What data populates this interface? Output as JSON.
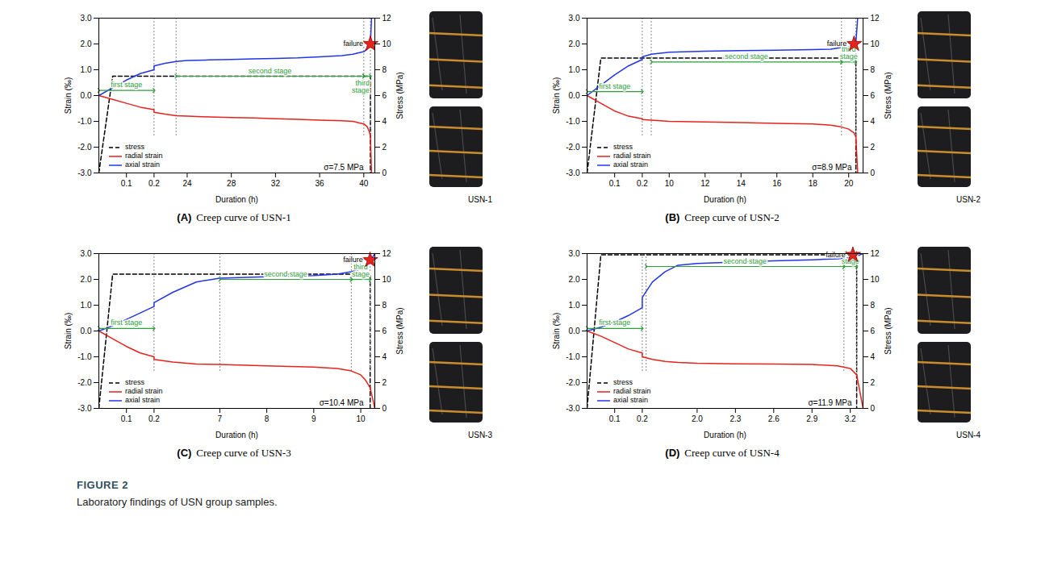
{
  "figure": {
    "label": "FIGURE 2",
    "caption": "Laboratory findings of USN group samples."
  },
  "chart_data": [
    {
      "type": "line",
      "panel": "(A)",
      "title": "Creep curve of USN-1",
      "sample": "USN-1",
      "xlabel": "Duration (h)",
      "ylabel": "Strain (‰)",
      "y2label": "Stress (MPa)",
      "xlim": [
        0,
        41
      ],
      "xbreak": [
        0.2,
        21
      ],
      "xticks": [
        0.1,
        0.2,
        24,
        28,
        32,
        36,
        40
      ],
      "ylim": [
        -3,
        3
      ],
      "yticks": [
        {
          "value": -3,
          "label": "-3.0"
        },
        {
          "value": -2,
          "label": "-2.0"
        },
        {
          "value": -1,
          "label": "-1.0"
        },
        {
          "value": 0,
          "label": "0.0"
        },
        {
          "value": 1,
          "label": "1.0"
        },
        {
          "value": 2,
          "label": "2.0"
        },
        {
          "value": 3,
          "label": "3.0"
        }
      ],
      "y2lim": [
        0,
        12
      ],
      "y2ticks": [
        0,
        2,
        4,
        6,
        8,
        10,
        12
      ],
      "legend": "bottom-left",
      "series": [
        {
          "name": "stress",
          "color": "#000000",
          "line_style": "dashed",
          "axis": "y2",
          "x": [
            0,
            0.05,
            40.6,
            40.6
          ],
          "values": [
            0,
            7.5,
            7.5,
            0
          ]
        },
        {
          "name": "radial strain",
          "color": "#e8221c",
          "line_style": "solid",
          "x": [
            0,
            0.05,
            0.1,
            0.15,
            0.2,
            21,
            22,
            23,
            24,
            26,
            28,
            30,
            32,
            34,
            36,
            38,
            39,
            40,
            40.3,
            40.5,
            40.6,
            40.7
          ],
          "values": [
            0,
            -0.15,
            -0.3,
            -0.45,
            -0.55,
            -0.65,
            -0.72,
            -0.78,
            -0.8,
            -0.83,
            -0.85,
            -0.87,
            -0.9,
            -0.92,
            -0.95,
            -0.98,
            -1.0,
            -1.1,
            -1.2,
            -1.4,
            -1.6,
            -3.0
          ]
        },
        {
          "name": "axial strain",
          "color": "#2335e8",
          "line_style": "solid",
          "x": [
            0,
            0.05,
            0.1,
            0.15,
            0.2,
            21,
            22,
            23,
            24,
            26,
            28,
            30,
            32,
            34,
            36,
            38,
            39,
            40,
            40.3,
            40.5,
            40.6,
            40.7
          ],
          "values": [
            0,
            0.3,
            0.6,
            0.85,
            1.0,
            1.15,
            1.25,
            1.32,
            1.36,
            1.38,
            1.4,
            1.42,
            1.44,
            1.46,
            1.5,
            1.55,
            1.6,
            1.7,
            1.8,
            1.95,
            2.0,
            3.0
          ]
        }
      ],
      "stages": [
        {
          "label": "first stage",
          "x": [
            0,
            0.2
          ],
          "y": 0.2
        },
        {
          "label": "second stage",
          "x": [
            23,
            40
          ],
          "y": 0.75
        },
        {
          "label": "third stage",
          "x": [
            40,
            40.6
          ],
          "y": 0.75
        }
      ],
      "failure": {
        "label": "failure",
        "x": 40.6,
        "y": 2.0,
        "marker": "star",
        "color": "#e8221c"
      },
      "annotations": [
        {
          "text": "σ=7.5 MPa"
        }
      ]
    },
    {
      "type": "line",
      "panel": "(B)",
      "title": "Creep curve of USN-2",
      "sample": "USN-2",
      "xlabel": "Duration (h)",
      "ylabel": "Strain (‰)",
      "y2label": "Stress (MPa)",
      "xlim": [
        0,
        20.8
      ],
      "xbreak": [
        0.2,
        8.5
      ],
      "xticks": [
        0.1,
        0.2,
        10,
        12,
        14,
        16,
        18,
        20
      ],
      "ylim": [
        -3,
        3
      ],
      "yticks": [
        {
          "value": -3,
          "label": "-3.0"
        },
        {
          "value": -2,
          "label": "-2.0"
        },
        {
          "value": -1,
          "label": "-1.0"
        },
        {
          "value": 0,
          "label": "0.0"
        },
        {
          "value": 1,
          "label": "1.0"
        },
        {
          "value": 2,
          "label": "2.0"
        },
        {
          "value": 3,
          "label": "3.0"
        }
      ],
      "y2lim": [
        0,
        12
      ],
      "y2ticks": [
        0,
        2,
        4,
        6,
        8,
        10,
        12
      ],
      "legend": "bottom-left",
      "series": [
        {
          "name": "stress",
          "color": "#000000",
          "line_style": "dashed",
          "axis": "y2",
          "x": [
            0,
            0.05,
            20.4,
            20.4
          ],
          "values": [
            0,
            8.9,
            8.9,
            0
          ]
        },
        {
          "name": "radial strain",
          "color": "#e8221c",
          "line_style": "solid",
          "x": [
            0,
            0.05,
            0.1,
            0.15,
            0.2,
            8.5,
            9,
            10,
            12,
            14,
            16,
            18,
            19,
            19.5,
            20,
            20.3,
            20.4,
            20.5
          ],
          "values": [
            0,
            -0.3,
            -0.6,
            -0.8,
            -0.9,
            -0.93,
            -0.95,
            -1.0,
            -1.02,
            -1.05,
            -1.08,
            -1.1,
            -1.15,
            -1.2,
            -1.3,
            -1.45,
            -1.6,
            -3.0
          ]
        },
        {
          "name": "axial strain",
          "color": "#2335e8",
          "line_style": "solid",
          "x": [
            0,
            0.05,
            0.1,
            0.15,
            0.2,
            8.5,
            9,
            10,
            12,
            14,
            16,
            18,
            19,
            19.5,
            20,
            20.3,
            20.4,
            20.5
          ],
          "values": [
            0,
            0.4,
            0.8,
            1.15,
            1.4,
            1.5,
            1.6,
            1.68,
            1.72,
            1.74,
            1.76,
            1.78,
            1.8,
            1.85,
            1.9,
            2.0,
            2.05,
            3.0
          ]
        }
      ],
      "stages": [
        {
          "label": "first stage",
          "x": [
            0,
            0.2
          ],
          "y": 0.15
        },
        {
          "label": "second stage",
          "x": [
            9,
            19.6
          ],
          "y": 1.3
        },
        {
          "label": "third stage",
          "x": [
            19.6,
            20.4
          ],
          "y": 1.3
        }
      ],
      "failure": {
        "label": "failure",
        "x": 20.3,
        "y": 2.0,
        "marker": "star",
        "color": "#e8221c"
      },
      "annotations": [
        {
          "text": "σ=8.9 MPa"
        }
      ]
    },
    {
      "type": "line",
      "panel": "(C)",
      "title": "Creep curve of USN-3",
      "sample": "USN-3",
      "xlabel": "Duration (h)",
      "ylabel": "Strain (‰)",
      "y2label": "Stress (MPa)",
      "xlim": [
        0,
        10.3
      ],
      "xbreak": [
        0.2,
        5.6
      ],
      "xticks": [
        0.1,
        0.2,
        7,
        8,
        9,
        10
      ],
      "ylim": [
        -3,
        3
      ],
      "yticks": [
        {
          "value": -3,
          "label": "-3.0"
        },
        {
          "value": -2,
          "label": "-2.0"
        },
        {
          "value": -1,
          "label": "-1.0"
        },
        {
          "value": 0,
          "label": "0.0"
        },
        {
          "value": 1,
          "label": "1.0"
        },
        {
          "value": 2,
          "label": "2.0"
        },
        {
          "value": 3,
          "label": "3.0"
        }
      ],
      "y2lim": [
        0,
        12
      ],
      "y2ticks": [
        0,
        2,
        4,
        6,
        8,
        10,
        12
      ],
      "legend": "bottom-left",
      "series": [
        {
          "name": "stress",
          "color": "#000000",
          "line_style": "dashed",
          "axis": "y2",
          "x": [
            0,
            0.05,
            10.2,
            10.2
          ],
          "values": [
            0,
            10.4,
            10.4,
            0
          ]
        },
        {
          "name": "radial strain",
          "color": "#e8221c",
          "line_style": "solid",
          "x": [
            0,
            0.05,
            0.1,
            0.15,
            0.2,
            5.6,
            6,
            6.5,
            7,
            8,
            9,
            9.5,
            9.8,
            10,
            10.1,
            10.2,
            10.3
          ],
          "values": [
            0,
            -0.3,
            -0.6,
            -0.85,
            -1.0,
            -1.1,
            -1.2,
            -1.28,
            -1.3,
            -1.35,
            -1.4,
            -1.45,
            -1.55,
            -1.7,
            -1.9,
            -2.2,
            -3.0
          ]
        },
        {
          "name": "axial strain",
          "color": "#2335e8",
          "line_style": "solid",
          "x": [
            0,
            0.05,
            0.1,
            0.15,
            0.2,
            5.6,
            6,
            6.5,
            7,
            8,
            9,
            9.5,
            9.8,
            10,
            10.1,
            10.2,
            10.3
          ],
          "values": [
            0,
            0.2,
            0.45,
            0.7,
            0.95,
            1.1,
            1.5,
            1.9,
            2.05,
            2.1,
            2.15,
            2.2,
            2.3,
            2.4,
            2.5,
            2.7,
            3.0
          ]
        }
      ],
      "stages": [
        {
          "label": "first stage",
          "x": [
            0,
            0.2
          ],
          "y": 0.1
        },
        {
          "label": "second stage",
          "x": [
            7,
            9.8
          ],
          "y": 2.0
        },
        {
          "label": "third stage",
          "x": [
            9.8,
            10.2
          ],
          "y": 2.0
        }
      ],
      "failure": {
        "label": "failure",
        "x": 10.2,
        "y": 2.75,
        "marker": "star",
        "color": "#e8221c"
      },
      "annotations": [
        {
          "text": "σ=10.4 MPa"
        }
      ]
    },
    {
      "type": "line",
      "panel": "(D)",
      "title": "Creep curve of USN-4",
      "sample": "USN-4",
      "xlabel": "Duration (h)",
      "ylabel": "Strain (‰)",
      "y2label": "Stress (MPa)",
      "xlim": [
        0,
        3.3
      ],
      "xbreak": [
        0.2,
        1.57
      ],
      "xticks": [
        0.1,
        0.2,
        {
          "value": 2,
          "label": "2.0"
        },
        2.3,
        2.6,
        2.9,
        3.2
      ],
      "ylim": [
        -3,
        3
      ],
      "yticks": [
        {
          "value": -3,
          "label": "-3.0"
        },
        {
          "value": -2,
          "label": "-2.0"
        },
        {
          "value": -1,
          "label": "-1.0"
        },
        {
          "value": 0,
          "label": "0.0"
        },
        {
          "value": 1,
          "label": "1.0"
        },
        {
          "value": 2,
          "label": "2.0"
        },
        {
          "value": 3,
          "label": "3.0"
        }
      ],
      "y2lim": [
        0,
        12
      ],
      "y2ticks": [
        0,
        2,
        4,
        6,
        8,
        10,
        12
      ],
      "legend": "bottom-left",
      "series": [
        {
          "name": "stress",
          "color": "#000000",
          "line_style": "dashed",
          "axis": "y2",
          "x": [
            0,
            0.05,
            3.25,
            3.25
          ],
          "values": [
            0,
            11.9,
            11.9,
            0
          ]
        },
        {
          "name": "radial strain",
          "color": "#e8221c",
          "line_style": "solid",
          "x": [
            0,
            0.05,
            0.1,
            0.15,
            0.2,
            1.57,
            1.65,
            1.75,
            1.85,
            2.0,
            2.3,
            2.6,
            2.9,
            3.1,
            3.2,
            3.25,
            3.3
          ],
          "values": [
            0,
            -0.2,
            -0.45,
            -0.7,
            -0.85,
            -1.0,
            -1.1,
            -1.18,
            -1.22,
            -1.25,
            -1.27,
            -1.28,
            -1.3,
            -1.35,
            -1.45,
            -1.7,
            -3.0
          ]
        },
        {
          "name": "axial strain",
          "color": "#2335e8",
          "line_style": "solid",
          "x": [
            0,
            0.05,
            0.1,
            0.15,
            0.2,
            1.57,
            1.65,
            1.75,
            1.85,
            2.0,
            2.3,
            2.6,
            2.9,
            3.1,
            3.2,
            3.25,
            3.3
          ],
          "values": [
            0,
            0.15,
            0.35,
            0.6,
            0.9,
            1.3,
            1.9,
            2.3,
            2.55,
            2.62,
            2.67,
            2.72,
            2.76,
            2.8,
            2.85,
            2.9,
            3.0
          ]
        }
      ],
      "stages": [
        {
          "label": "first stage",
          "x": [
            0,
            0.2
          ],
          "y": 0.1
        },
        {
          "label": "second stage",
          "x": [
            1.6,
            3.15
          ],
          "y": 2.5
        },
        {
          "label": "third stage",
          "x": [
            3.15,
            3.25
          ],
          "y": 2.5
        }
      ],
      "failure": {
        "label": "failure",
        "x": 3.22,
        "y": 2.95,
        "marker": "star",
        "color": "#e8221c"
      },
      "annotations": [
        {
          "text": "σ=11.9 MPa"
        }
      ]
    }
  ]
}
